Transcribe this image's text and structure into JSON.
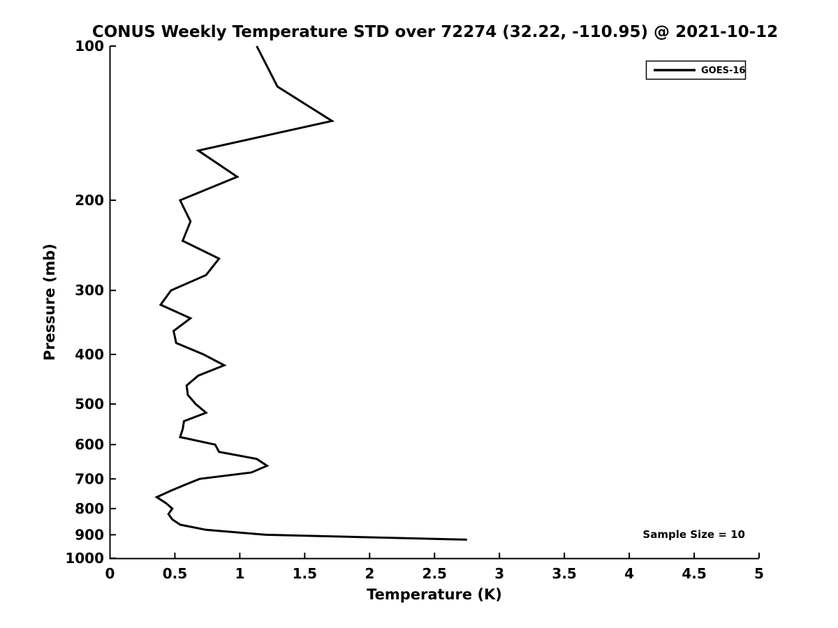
{
  "title": "CONUS Weekly Temperature STD over 72274 (32.22, -110.95) @ 2021-10-12",
  "legend": {
    "label": "GOES-16"
  },
  "annotation": {
    "sample_size_text": "Sample Size = 10"
  },
  "colors": {
    "background": "#ffffff",
    "line": "#000000",
    "text": "#000000",
    "axis": "#000000"
  },
  "chart_data": {
    "type": "line",
    "title": "CONUS Weekly Temperature STD over 72274 (32.22, -110.95) @ 2021-10-12",
    "xlabel": "Temperature (K)",
    "ylabel": "Pressure (mb)",
    "xlim": [
      0,
      5
    ],
    "x_ticks": [
      0,
      0.5,
      1,
      1.5,
      2,
      2.5,
      3,
      3.5,
      4,
      4.5,
      5
    ],
    "ylim": [
      100,
      1000
    ],
    "y_ticks": [
      100,
      200,
      300,
      400,
      500,
      600,
      700,
      800,
      900,
      1000
    ],
    "y_scale": "log",
    "y_inverted": true,
    "grid": false,
    "legend_position": "top-right",
    "legend_entries": [
      "GOES-16"
    ],
    "annotations": [
      {
        "text": "Sample Size = 10",
        "position": "bottom-right"
      }
    ],
    "series": [
      {
        "name": "GOES-16",
        "color": "#000000",
        "x_name": "temperature_std_K",
        "y_name": "pressure_mb",
        "pressure_mb": [
          100,
          120,
          140,
          160,
          180,
          200,
          220,
          240,
          260,
          280,
          300,
          320,
          340,
          360,
          380,
          400,
          420,
          440,
          460,
          480,
          500,
          520,
          540,
          560,
          580,
          600,
          620,
          640,
          660,
          680,
          700,
          720,
          740,
          760,
          780,
          800,
          820,
          840,
          860,
          880,
          900,
          920
        ],
        "temperature_std_K": [
          1.13,
          1.29,
          1.71,
          0.68,
          0.98,
          0.54,
          0.62,
          0.56,
          0.84,
          0.74,
          0.47,
          0.39,
          0.62,
          0.49,
          0.51,
          0.72,
          0.88,
          0.68,
          0.59,
          0.6,
          0.66,
          0.74,
          0.57,
          0.56,
          0.54,
          0.81,
          0.84,
          1.13,
          1.21,
          1.09,
          0.69,
          0.57,
          0.46,
          0.36,
          0.43,
          0.48,
          0.45,
          0.48,
          0.54,
          0.74,
          1.2,
          2.75
        ]
      }
    ]
  }
}
